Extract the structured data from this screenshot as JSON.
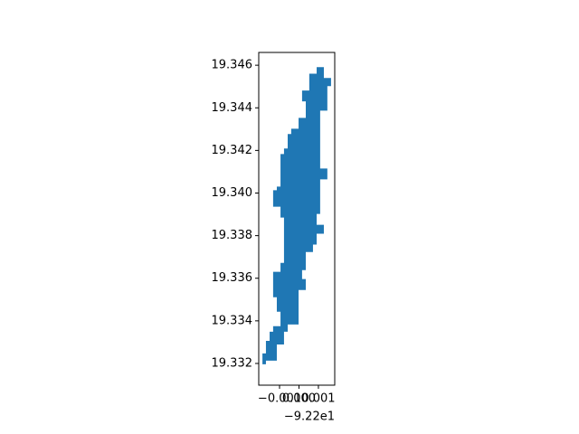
{
  "chart_data": {
    "type": "polygon",
    "color": "#1f77b4",
    "x": [
      -92.19909,
      -92.19872,
      -92.19872,
      -92.19835,
      -92.19835,
      -92.19854,
      -92.19854,
      -92.19891,
      -92.19891,
      -92.19854,
      -92.19854,
      -92.19891,
      -92.19891,
      -92.19909,
      -92.19909,
      -92.19872,
      -92.19872,
      -92.19909,
      -92.19909,
      -92.19928,
      -92.19928,
      -92.19965,
      -92.19965,
      -92.19984,
      -92.19984,
      -92.19965,
      -92.19965,
      -92.20002,
      -92.20002,
      -92.20058,
      -92.20058,
      -92.20077,
      -92.20077,
      -92.20114,
      -92.20114,
      -92.2017,
      -92.2017,
      -92.20188,
      -92.20188,
      -92.2017,
      -92.2017,
      -92.20151,
      -92.20151,
      -92.20133,
      -92.20133,
      -92.20095,
      -92.20095,
      -92.20114,
      -92.20114,
      -92.20133,
      -92.20133,
      -92.20095,
      -92.20095,
      -92.20077,
      -92.20077,
      -92.20095,
      -92.20095,
      -92.20133,
      -92.20133,
      -92.20114,
      -92.20114,
      -92.20095,
      -92.20095,
      -92.20077,
      -92.20077,
      -92.20058,
      -92.20058,
      -92.2004,
      -92.2004,
      -92.20002,
      -92.20002,
      -92.19965,
      -92.19965,
      -92.19984,
      -92.19984,
      -92.19947,
      -92.19947,
      -92.19909
    ],
    "y": [
      19.34591,
      19.34591,
      19.3454,
      19.3454,
      19.34502,
      19.34502,
      19.34387,
      19.34387,
      19.34115,
      19.34115,
      19.34064,
      19.34064,
      19.33902,
      19.33902,
      19.33851,
      19.33851,
      19.33809,
      19.33809,
      19.33758,
      19.33758,
      19.33723,
      19.33723,
      19.33638,
      19.33638,
      19.33596,
      19.33596,
      19.33545,
      19.33545,
      19.33383,
      19.33383,
      19.33349,
      19.33349,
      19.33289,
      19.33289,
      19.33213,
      19.33213,
      19.33196,
      19.33196,
      19.33247,
      19.33247,
      19.33306,
      19.33306,
      19.33349,
      19.33349,
      19.33375,
      19.33375,
      19.33443,
      19.33443,
      19.33511,
      19.33511,
      19.3363,
      19.3363,
      19.33672,
      19.33672,
      19.33885,
      19.33885,
      19.33936,
      19.33936,
      19.34013,
      19.34013,
      19.3403,
      19.3403,
      19.34183,
      19.34183,
      19.34209,
      19.34209,
      19.34277,
      19.34277,
      19.34302,
      19.34302,
      19.34353,
      19.34353,
      19.3443,
      19.3443,
      19.34481,
      19.34481,
      19.3456,
      19.3456
    ],
    "xlim": [
      -92.20207,
      -92.19816
    ],
    "ylim": [
      19.33098,
      19.3466
    ],
    "xticks": [
      {
        "value": -92.201,
        "label": "−0.001"
      },
      {
        "value": -92.2,
        "label": "0.000"
      },
      {
        "value": -92.199,
        "label": "0.001"
      }
    ],
    "x_offset_label": "−9.22e1",
    "yticks": [
      19.332,
      19.334,
      19.336,
      19.338,
      {
        "value": 19.34,
        "label": "19.340"
      },
      19.342,
      19.344,
      19.346
    ]
  }
}
